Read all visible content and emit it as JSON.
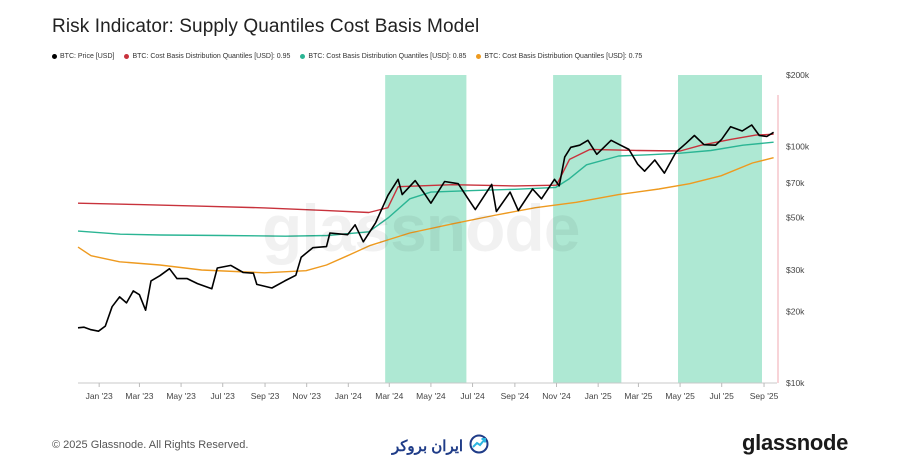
{
  "title": "Risk Indicator: Supply Quantiles Cost Basis Model",
  "watermark": "glassnode",
  "footer": {
    "copyright": "© 2025 Glassnode. All Rights Reserved.",
    "partner_logo_text": "ایران بروکر",
    "brand": "glassnode"
  },
  "colors": {
    "price": "#000000",
    "q95": "#c8323c",
    "q85": "#2bb594",
    "q75": "#ee9a1f",
    "highlight": "#aee8d3",
    "grid": "#e6e6e6",
    "right_rule": "#f0a8b0"
  },
  "chart_data": {
    "type": "line",
    "scale": "log",
    "ylim": [
      10000,
      200000
    ],
    "xlim": [
      "2022-12-01",
      "2025-09-20"
    ],
    "y_ticks": [
      {
        "value": 10000,
        "label": "$10k"
      },
      {
        "value": 20000,
        "label": "$20k"
      },
      {
        "value": 30000,
        "label": "$30k"
      },
      {
        "value": 50000,
        "label": "$50k"
      },
      {
        "value": 70000,
        "label": "$70k"
      },
      {
        "value": 100000,
        "label": "$100k"
      },
      {
        "value": 200000,
        "label": "$200k"
      }
    ],
    "x_ticks": [
      {
        "date": "2023-01-01",
        "label": "Jan '23"
      },
      {
        "date": "2023-03-01",
        "label": "Mar '23"
      },
      {
        "date": "2023-05-01",
        "label": "May '23"
      },
      {
        "date": "2023-07-01",
        "label": "Jul '23"
      },
      {
        "date": "2023-09-01",
        "label": "Sep '23"
      },
      {
        "date": "2023-11-01",
        "label": "Nov '23"
      },
      {
        "date": "2024-01-01",
        "label": "Jan '24"
      },
      {
        "date": "2024-03-01",
        "label": "Mar '24"
      },
      {
        "date": "2024-05-01",
        "label": "May '24"
      },
      {
        "date": "2024-07-01",
        "label": "Jul '24"
      },
      {
        "date": "2024-09-01",
        "label": "Sep '24"
      },
      {
        "date": "2024-11-01",
        "label": "Nov '24"
      },
      {
        "date": "2025-01-01",
        "label": "Jan '25"
      },
      {
        "date": "2025-03-01",
        "label": "Mar '25"
      },
      {
        "date": "2025-05-01",
        "label": "May '25"
      },
      {
        "date": "2025-07-01",
        "label": "Jul '25"
      },
      {
        "date": "2025-09-01",
        "label": "Sep '25"
      }
    ],
    "shaded_periods": [
      [
        "2024-02-24",
        "2024-06-22"
      ],
      [
        "2024-10-27",
        "2025-02-04"
      ],
      [
        "2025-04-28",
        "2025-08-29"
      ]
    ],
    "series": [
      {
        "name": "BTC: Price [USD]",
        "color": "#000000",
        "points": [
          [
            "2022-12-01",
            17100
          ],
          [
            "2022-12-10",
            17200
          ],
          [
            "2022-12-20",
            16800
          ],
          [
            "2022-12-31",
            16550
          ],
          [
            "2023-01-10",
            17400
          ],
          [
            "2023-01-20",
            21000
          ],
          [
            "2023-01-31",
            23100
          ],
          [
            "2023-02-10",
            21800
          ],
          [
            "2023-02-20",
            24500
          ],
          [
            "2023-03-01",
            23600
          ],
          [
            "2023-03-10",
            20300
          ],
          [
            "2023-03-18",
            27000
          ],
          [
            "2023-03-31",
            28400
          ],
          [
            "2023-04-14",
            30400
          ],
          [
            "2023-04-25",
            27600
          ],
          [
            "2023-05-10",
            27600
          ],
          [
            "2023-05-25",
            26300
          ],
          [
            "2023-06-15",
            25000
          ],
          [
            "2023-06-23",
            30600
          ],
          [
            "2023-07-13",
            31400
          ],
          [
            "2023-07-31",
            29300
          ],
          [
            "2023-08-15",
            29100
          ],
          [
            "2023-08-20",
            26100
          ],
          [
            "2023-09-11",
            25200
          ],
          [
            "2023-09-30",
            27000
          ],
          [
            "2023-10-16",
            28500
          ],
          [
            "2023-10-24",
            34000
          ],
          [
            "2023-11-10",
            37300
          ],
          [
            "2023-11-30",
            37700
          ],
          [
            "2023-12-05",
            43000
          ],
          [
            "2023-12-31",
            42300
          ],
          [
            "2024-01-11",
            46600
          ],
          [
            "2024-01-23",
            39500
          ],
          [
            "2024-02-10",
            47500
          ],
          [
            "2024-02-28",
            62000
          ],
          [
            "2024-03-14",
            72500
          ],
          [
            "2024-03-20",
            62500
          ],
          [
            "2024-04-08",
            71600
          ],
          [
            "2024-04-20",
            64000
          ],
          [
            "2024-05-01",
            57500
          ],
          [
            "2024-05-21",
            71000
          ],
          [
            "2024-06-10",
            69500
          ],
          [
            "2024-06-24",
            60300
          ],
          [
            "2024-07-05",
            54000
          ],
          [
            "2024-07-29",
            69000
          ],
          [
            "2024-08-05",
            53000
          ],
          [
            "2024-08-25",
            64000
          ],
          [
            "2024-09-06",
            53500
          ],
          [
            "2024-09-27",
            66000
          ],
          [
            "2024-10-10",
            60000
          ],
          [
            "2024-10-29",
            72500
          ],
          [
            "2024-11-05",
            68000
          ],
          [
            "2024-11-13",
            90000
          ],
          [
            "2024-11-22",
            99000
          ],
          [
            "2024-12-05",
            101000
          ],
          [
            "2024-12-17",
            106000
          ],
          [
            "2024-12-30",
            92500
          ],
          [
            "2025-01-20",
            106000
          ],
          [
            "2025-01-31",
            102000
          ],
          [
            "2025-02-15",
            97000
          ],
          [
            "2025-02-28",
            84000
          ],
          [
            "2025-03-10",
            78500
          ],
          [
            "2025-03-25",
            87500
          ],
          [
            "2025-04-08",
            77000
          ],
          [
            "2025-04-25",
            94500
          ],
          [
            "2025-05-10",
            103000
          ],
          [
            "2025-05-22",
            111000
          ],
          [
            "2025-06-05",
            101500
          ],
          [
            "2025-06-22",
            101000
          ],
          [
            "2025-07-01",
            107000
          ],
          [
            "2025-07-14",
            121000
          ],
          [
            "2025-07-31",
            116000
          ],
          [
            "2025-08-14",
            123000
          ],
          [
            "2025-08-25",
            111000
          ],
          [
            "2025-09-05",
            110000
          ],
          [
            "2025-09-15",
            114500
          ]
        ]
      },
      {
        "name": "BTC: Cost Basis Distribution Quantiles [USD]: 0.95",
        "color": "#c8323c",
        "points": [
          [
            "2022-12-01",
            57500
          ],
          [
            "2023-03-01",
            56700
          ],
          [
            "2023-06-01",
            55800
          ],
          [
            "2023-09-01",
            54900
          ],
          [
            "2023-12-01",
            53500
          ],
          [
            "2024-01-31",
            52500
          ],
          [
            "2024-02-28",
            55000
          ],
          [
            "2024-03-14",
            67500
          ],
          [
            "2024-06-01",
            68800
          ],
          [
            "2024-09-01",
            68000
          ],
          [
            "2024-11-01",
            68500
          ],
          [
            "2024-11-20",
            88000
          ],
          [
            "2024-12-20",
            97000
          ],
          [
            "2025-03-01",
            96000
          ],
          [
            "2025-05-01",
            95500
          ],
          [
            "2025-06-01",
            101000
          ],
          [
            "2025-07-15",
            107000
          ],
          [
            "2025-08-20",
            111500
          ],
          [
            "2025-09-15",
            112500
          ]
        ]
      },
      {
        "name": "BTC: Cost Basis Distribution Quantiles [USD]: 0.85",
        "color": "#2bb594",
        "points": [
          [
            "2022-12-01",
            43800
          ],
          [
            "2023-02-01",
            42500
          ],
          [
            "2023-04-01",
            42200
          ],
          [
            "2023-07-01",
            42000
          ],
          [
            "2023-10-01",
            41700
          ],
          [
            "2023-12-01",
            42000
          ],
          [
            "2024-01-31",
            43500
          ],
          [
            "2024-02-29",
            50000
          ],
          [
            "2024-03-31",
            60000
          ],
          [
            "2024-05-01",
            64000
          ],
          [
            "2024-07-01",
            65000
          ],
          [
            "2024-09-01",
            65800
          ],
          [
            "2024-10-31",
            67000
          ],
          [
            "2024-11-20",
            73000
          ],
          [
            "2024-12-15",
            83500
          ],
          [
            "2025-01-31",
            91000
          ],
          [
            "2025-03-15",
            92000
          ],
          [
            "2025-05-01",
            93500
          ],
          [
            "2025-06-15",
            96000
          ],
          [
            "2025-08-01",
            101000
          ],
          [
            "2025-09-15",
            104000
          ]
        ]
      },
      {
        "name": "BTC: Cost Basis Distribution Quantiles [USD]: 0.75",
        "color": "#ee9a1f",
        "points": [
          [
            "2022-12-01",
            37500
          ],
          [
            "2022-12-20",
            34500
          ],
          [
            "2023-01-31",
            32500
          ],
          [
            "2023-03-31",
            31500
          ],
          [
            "2023-05-31",
            30000
          ],
          [
            "2023-08-31",
            29200
          ],
          [
            "2023-10-31",
            29800
          ],
          [
            "2023-11-30",
            31500
          ],
          [
            "2023-12-31",
            34500
          ],
          [
            "2024-02-01",
            38000
          ],
          [
            "2024-03-31",
            43000
          ],
          [
            "2024-06-01",
            47000
          ],
          [
            "2024-08-01",
            51000
          ],
          [
            "2024-10-01",
            55000
          ],
          [
            "2024-11-30",
            58000
          ],
          [
            "2025-01-31",
            62500
          ],
          [
            "2025-03-31",
            66000
          ],
          [
            "2025-05-15",
            69500
          ],
          [
            "2025-06-30",
            75000
          ],
          [
            "2025-08-15",
            85000
          ],
          [
            "2025-09-15",
            89500
          ]
        ]
      }
    ]
  }
}
